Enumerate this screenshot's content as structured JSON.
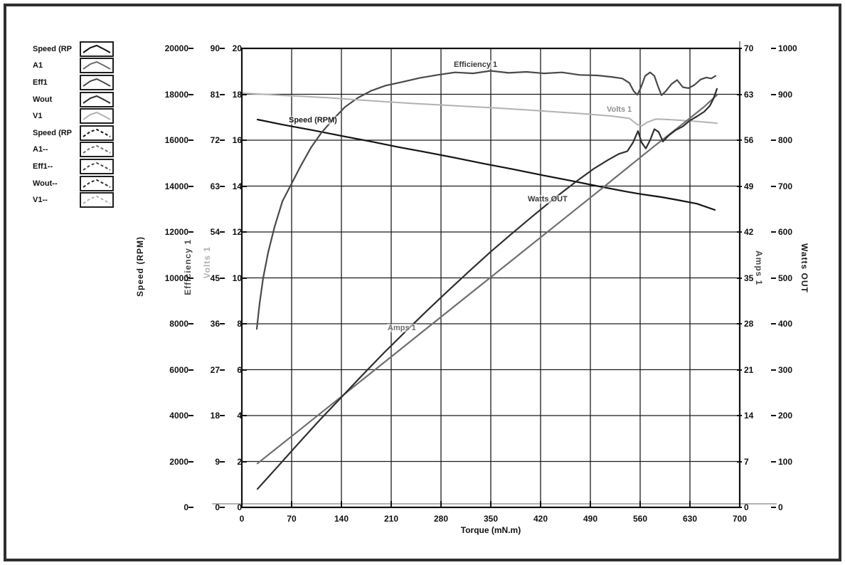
{
  "chart_data": {
    "type": "line",
    "title": "",
    "xlabel": "Torque (mN.m)",
    "grid": true,
    "legend_position": "left",
    "x_axis": {
      "label": "Torque (mN.m)",
      "min": 0,
      "max": 700,
      "ticks": [
        0,
        70,
        140,
        210,
        280,
        350,
        420,
        490,
        560,
        630,
        700
      ]
    },
    "y_axes": [
      {
        "id": "speed",
        "label": "Speed (RPM)",
        "side": "left",
        "min": 0,
        "max": 20000,
        "ticks": [
          0,
          2000,
          4000,
          6000,
          8000,
          10000,
          12000,
          14000,
          16000,
          18000,
          20000
        ],
        "color": "#1a1a1a"
      },
      {
        "id": "efficiency",
        "label": "Efficiency 1",
        "side": "left",
        "min": 0,
        "max": 90,
        "ticks": [
          0,
          9,
          18,
          27,
          36,
          45,
          54,
          63,
          72,
          81,
          90
        ],
        "color": "#4a4a4a"
      },
      {
        "id": "volts",
        "label": "Volts 1",
        "side": "left",
        "min": 0,
        "max": 20,
        "ticks": [
          0,
          2,
          4,
          6,
          8,
          10,
          12,
          14,
          16,
          18,
          20
        ],
        "color": "#a8a8a8"
      },
      {
        "id": "amps",
        "label": "Amps 1",
        "side": "right",
        "min": 0,
        "max": 70,
        "ticks": [
          0,
          7,
          14,
          21,
          28,
          35,
          42,
          49,
          56,
          63,
          70
        ],
        "color": "#5a5a5a"
      },
      {
        "id": "watts",
        "label": "Watts OUT",
        "side": "right",
        "min": 0,
        "max": 1000,
        "ticks": [
          0,
          100,
          200,
          300,
          400,
          500,
          600,
          700,
          800,
          900,
          1000
        ],
        "color": "#1a1a1a"
      }
    ],
    "series": [
      {
        "name": "Speed (RPM)",
        "axis": "speed",
        "color": "#141414",
        "width": 2.2,
        "dash": "",
        "points": [
          [
            22,
            16900
          ],
          [
            60,
            16660
          ],
          [
            100,
            16430
          ],
          [
            140,
            16190
          ],
          [
            180,
            15950
          ],
          [
            220,
            15700
          ],
          [
            260,
            15470
          ],
          [
            300,
            15230
          ],
          [
            340,
            14980
          ],
          [
            380,
            14740
          ],
          [
            420,
            14490
          ],
          [
            460,
            14250
          ],
          [
            500,
            14000
          ],
          [
            540,
            13760
          ],
          [
            565,
            13630
          ],
          [
            590,
            13520
          ],
          [
            615,
            13380
          ],
          [
            640,
            13230
          ],
          [
            665,
            12960
          ]
        ]
      },
      {
        "name": "Efficiency 1",
        "axis": "efficiency",
        "color": "#4a4a4a",
        "width": 2.2,
        "dash": "",
        "points": [
          [
            21,
            35
          ],
          [
            25,
            40
          ],
          [
            30,
            45
          ],
          [
            37,
            50
          ],
          [
            46,
            55
          ],
          [
            57,
            60
          ],
          [
            70,
            63.5
          ],
          [
            83,
            67
          ],
          [
            97,
            70.5
          ],
          [
            112,
            73.5
          ],
          [
            128,
            76
          ],
          [
            145,
            78.5
          ],
          [
            163,
            80.3
          ],
          [
            182,
            81.7
          ],
          [
            202,
            82.7
          ],
          [
            225,
            83.4
          ],
          [
            250,
            84.2
          ],
          [
            275,
            84.8
          ],
          [
            300,
            85.3
          ],
          [
            325,
            85.1
          ],
          [
            350,
            85.6
          ],
          [
            375,
            85.2
          ],
          [
            400,
            85.4
          ],
          [
            425,
            85.1
          ],
          [
            450,
            85.3
          ],
          [
            475,
            84.8
          ],
          [
            500,
            84.7
          ],
          [
            520,
            84.4
          ],
          [
            535,
            84.1
          ],
          [
            545,
            83.2
          ],
          [
            551,
            81.6
          ],
          [
            556,
            80.9
          ],
          [
            561,
            82.3
          ],
          [
            567,
            84.6
          ],
          [
            574,
            85.3
          ],
          [
            580,
            84.6
          ],
          [
            585,
            82.6
          ],
          [
            590,
            80.8
          ],
          [
            596,
            81.6
          ],
          [
            604,
            83
          ],
          [
            612,
            83.8
          ],
          [
            620,
            82.4
          ],
          [
            628,
            82.2
          ],
          [
            636,
            82.8
          ],
          [
            645,
            83.9
          ],
          [
            653,
            84.3
          ],
          [
            660,
            84.1
          ],
          [
            666,
            84.6
          ]
        ]
      },
      {
        "name": "Volts 1",
        "axis": "volts",
        "color": "#b2b2b2",
        "width": 2,
        "dash": "",
        "points": [
          [
            0,
            18.05
          ],
          [
            60,
            17.95
          ],
          [
            120,
            17.85
          ],
          [
            180,
            17.72
          ],
          [
            240,
            17.6
          ],
          [
            300,
            17.5
          ],
          [
            360,
            17.4
          ],
          [
            420,
            17.28
          ],
          [
            480,
            17.15
          ],
          [
            520,
            17.05
          ],
          [
            545,
            16.95
          ],
          [
            555,
            16.7
          ],
          [
            562,
            16.62
          ],
          [
            570,
            16.78
          ],
          [
            582,
            16.92
          ],
          [
            600,
            16.9
          ],
          [
            620,
            16.86
          ],
          [
            640,
            16.82
          ],
          [
            668,
            16.74
          ]
        ]
      },
      {
        "name": "Amps 1",
        "axis": "amps",
        "color": "#6e6e6e",
        "width": 2.2,
        "dash": "",
        "points": [
          [
            22,
            6.7
          ],
          [
            80,
            11.7
          ],
          [
            140,
            16.9
          ],
          [
            200,
            22.1
          ],
          [
            260,
            27.3
          ],
          [
            320,
            32.5
          ],
          [
            380,
            37.7
          ],
          [
            440,
            42.9
          ],
          [
            500,
            48.1
          ],
          [
            540,
            51.6
          ],
          [
            580,
            55.1
          ],
          [
            620,
            58.5
          ],
          [
            650,
            61.1
          ],
          [
            668,
            62.9
          ]
        ]
      },
      {
        "name": "Watts OUT",
        "axis": "watts",
        "color": "#2e2e2e",
        "width": 2.2,
        "dash": "",
        "points": [
          [
            22,
            40
          ],
          [
            50,
            88
          ],
          [
            80,
            140
          ],
          [
            110,
            191
          ],
          [
            140,
            240
          ],
          [
            170,
            289
          ],
          [
            200,
            337
          ],
          [
            230,
            383
          ],
          [
            260,
            428
          ],
          [
            290,
            472
          ],
          [
            320,
            515
          ],
          [
            350,
            557
          ],
          [
            380,
            597
          ],
          [
            410,
            636
          ],
          [
            440,
            674
          ],
          [
            470,
            710
          ],
          [
            495,
            738
          ],
          [
            515,
            757
          ],
          [
            530,
            770
          ],
          [
            542,
            776
          ],
          [
            550,
            795
          ],
          [
            557,
            820
          ],
          [
            562,
            795
          ],
          [
            568,
            782
          ],
          [
            574,
            800
          ],
          [
            580,
            824
          ],
          [
            586,
            818
          ],
          [
            592,
            797
          ],
          [
            600,
            810
          ],
          [
            610,
            822
          ],
          [
            620,
            830
          ],
          [
            630,
            843
          ],
          [
            640,
            852
          ],
          [
            650,
            862
          ],
          [
            658,
            875
          ],
          [
            663,
            890
          ],
          [
            668,
            912
          ]
        ]
      }
    ],
    "curve_labels": [
      {
        "text": "Speed (RPM)",
        "axis": "speed",
        "x": 65,
        "y": 16840,
        "color": "#1a1a1a"
      },
      {
        "text": "Efficiency 1",
        "axis": "efficiency",
        "x": 297,
        "y": 86.7,
        "color": "#3a3a3a"
      },
      {
        "text": "Volts 1",
        "axis": "volts",
        "x": 512,
        "y": 17.3,
        "color": "#8f8f8f"
      },
      {
        "text": "Watts OUT",
        "axis": "watts",
        "x": 401,
        "y": 670,
        "color": "#3a3a3a"
      },
      {
        "text": "Amps 1",
        "axis": "amps",
        "x": 204,
        "y": 27.2,
        "color": "#6e6e6e"
      }
    ]
  },
  "legend": {
    "items": [
      {
        "label": "Speed (RP",
        "style": "solid",
        "color": "#141414"
      },
      {
        "label": "A1",
        "style": "solid",
        "color": "#6e6e6e"
      },
      {
        "label": "Eff1",
        "style": "solid",
        "color": "#4a4a4a"
      },
      {
        "label": "Wout",
        "style": "solid",
        "color": "#2e2e2e"
      },
      {
        "label": "V1",
        "style": "solid",
        "color": "#b2b2b2"
      },
      {
        "label": "Speed (RP",
        "style": "dashed",
        "color": "#141414"
      },
      {
        "label": "A1--",
        "style": "dashed",
        "color": "#6e6e6e"
      },
      {
        "label": "Eff1--",
        "style": "dashed",
        "color": "#4a4a4a"
      },
      {
        "label": "Wout--",
        "style": "dashed",
        "color": "#2e2e2e"
      },
      {
        "label": "V1--",
        "style": "dashed",
        "color": "#b2b2b2"
      }
    ]
  }
}
